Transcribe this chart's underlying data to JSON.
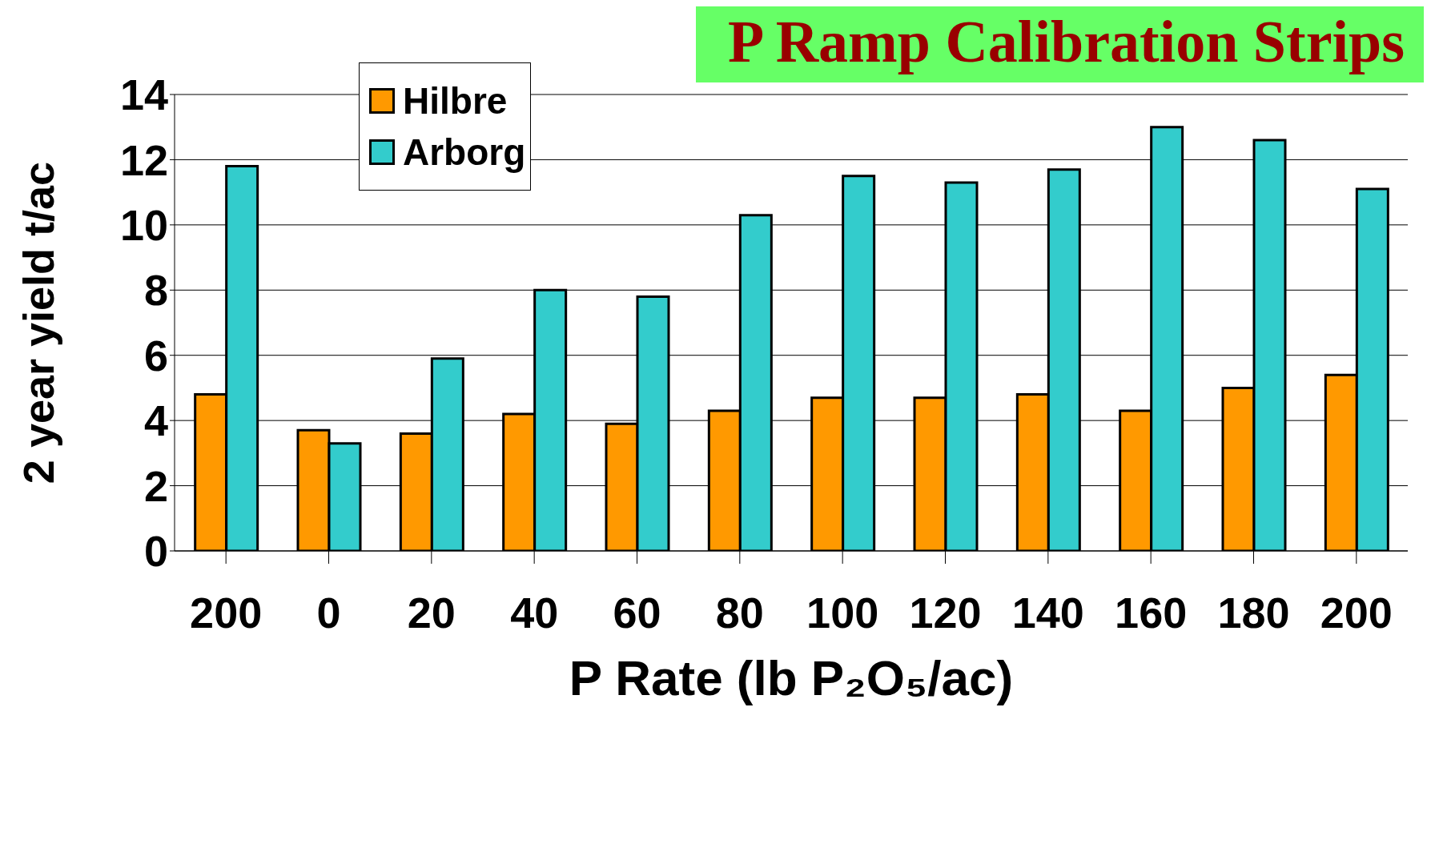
{
  "chart_data": {
    "type": "bar",
    "title": "P Ramp Calibration Strips",
    "xlabel": "P Rate (lb P₂O₅/ac)",
    "ylabel": "2 year yield t/ac",
    "categories": [
      "200",
      "0",
      "20",
      "40",
      "60",
      "80",
      "100",
      "120",
      "140",
      "160",
      "180",
      "200"
    ],
    "series": [
      {
        "name": "Hilbre",
        "color": "#ff9900",
        "values": [
          4.8,
          3.7,
          3.6,
          4.2,
          3.9,
          4.3,
          4.7,
          4.7,
          4.8,
          4.3,
          5.0,
          5.4
        ]
      },
      {
        "name": "Arborg",
        "color": "#33cccc",
        "values": [
          11.8,
          3.3,
          5.9,
          8.0,
          7.8,
          10.3,
          11.5,
          11.3,
          11.7,
          13.0,
          12.6,
          11.1
        ]
      }
    ],
    "ylim": [
      0,
      14
    ],
    "yticks": [
      0,
      2,
      4,
      6,
      8,
      10,
      12,
      14
    ],
    "grid": "y",
    "legend": "top left"
  }
}
